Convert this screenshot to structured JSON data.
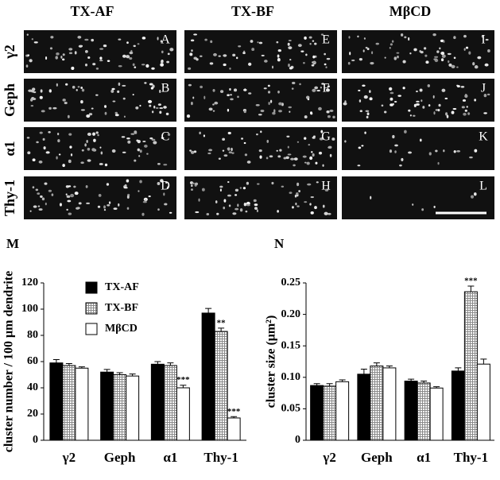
{
  "figure": {
    "columns": [
      "TX-AF",
      "TX-BF",
      "MβCD"
    ],
    "rows": [
      "γ2",
      "Geph",
      "α1",
      "Thy-1"
    ],
    "panel_letters": [
      [
        "A",
        "E",
        "I"
      ],
      [
        "B",
        "F",
        "J"
      ],
      [
        "C",
        "G",
        "K"
      ],
      [
        "D",
        "H",
        "L"
      ]
    ]
  },
  "chart_data": [
    {
      "type": "bar",
      "panel": "M",
      "ylabel": "cluster number / 100 μm dendrite",
      "categories": [
        "γ2",
        "Geph",
        "α1",
        "Thy-1"
      ],
      "ylim": [
        0,
        120
      ],
      "yticks": [
        0,
        20,
        40,
        60,
        80,
        100,
        120
      ],
      "series": [
        {
          "name": "TX-AF",
          "color": "#000000",
          "values": [
            59,
            52,
            58,
            97
          ],
          "errors": [
            2.5,
            2,
            2,
            3.5
          ],
          "significance": [
            null,
            null,
            null,
            null
          ]
        },
        {
          "name": "TX-BF",
          "color": "#8a8a8a",
          "values": [
            57,
            50,
            57,
            83
          ],
          "errors": [
            1.5,
            1.5,
            2,
            2.5
          ],
          "significance": [
            null,
            null,
            null,
            "**"
          ]
        },
        {
          "name": "MβCD",
          "color": "#ffffff",
          "values": [
            55,
            49,
            40,
            17
          ],
          "errors": [
            1,
            1.5,
            2,
            1
          ],
          "significance": [
            null,
            null,
            "***",
            "***"
          ]
        }
      ]
    },
    {
      "type": "bar",
      "panel": "N",
      "ylabel": "cluster size (μm²)",
      "categories": [
        "γ2",
        "Geph",
        "α1",
        "Thy-1"
      ],
      "ylim": [
        0,
        0.25
      ],
      "yticks": [
        0,
        0.05,
        {
          "value": 0.1,
          "label": "0.10"
        },
        0.15,
        {
          "value": 0.2,
          "label": "0.20"
        },
        0.25
      ],
      "series": [
        {
          "name": "TX-AF",
          "color": "#000000",
          "values": [
            0.087,
            0.105,
            0.094,
            0.11
          ],
          "errors": [
            0.003,
            0.008,
            0.003,
            0.005
          ],
          "significance": [
            null,
            null,
            null,
            null
          ]
        },
        {
          "name": "TX-BF",
          "color": "#8a8a8a",
          "values": [
            0.086,
            0.118,
            0.091,
            0.236
          ],
          "errors": [
            0.004,
            0.005,
            0.003,
            0.009
          ],
          "significance": [
            null,
            null,
            null,
            "***"
          ]
        },
        {
          "name": "MβCD",
          "color": "#ffffff",
          "values": [
            0.093,
            0.115,
            0.083,
            0.121
          ],
          "errors": [
            0.003,
            0.003,
            0.002,
            0.008
          ],
          "significance": [
            null,
            null,
            null,
            null
          ]
        }
      ]
    }
  ]
}
